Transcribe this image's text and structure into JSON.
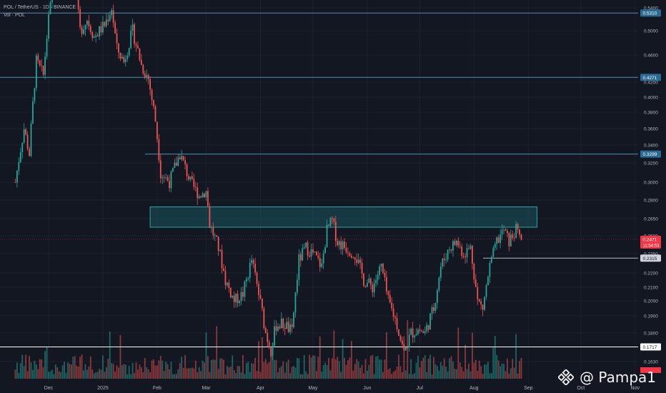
{
  "legend": {
    "symbol_line": "POL / TetherUS · 1D · BINANCE",
    "volume_line": "Vol · POL"
  },
  "watermark": {
    "text": "@ Pampa1",
    "icon": "binance-logo-icon"
  },
  "colors": {
    "background": "#131722",
    "up": "#26a69a",
    "down": "#ef5350",
    "level_line": "#4f8fb0",
    "zone_fill": "#1f7f86",
    "label_bg": "#2a6a93",
    "price_tag_bg": "#f23645",
    "white_line": "#ffffff"
  },
  "chart_data": {
    "type": "candlestick",
    "y_ticks": [
      "0.5400",
      "0.5000",
      "0.4600",
      "0.4200",
      "0.4000",
      "0.3800",
      "0.3600",
      "0.3400",
      "0.3200",
      "0.3000",
      "0.2800",
      "0.2650",
      "0.2500",
      "0.2350",
      "0.2200",
      "0.2100",
      "0.2000",
      "0.1900",
      "0.1800",
      "0.1630"
    ],
    "x_ticks": [
      "Dec",
      "2025",
      "Feb",
      "Mar",
      "Apr",
      "May",
      "Jun",
      "Jul",
      "Aug",
      "Sep",
      "Oct",
      "Nov"
    ],
    "levels": [
      {
        "label": "0.5310",
        "value": 0.531,
        "color": "#4f8fb0"
      },
      {
        "label": "0.4271",
        "value": 0.4271,
        "color": "#4f8fb0"
      },
      {
        "label": "0.3299",
        "value": 0.3299,
        "color": "#4f8fb0"
      },
      {
        "label": "0.2315",
        "value": 0.2315,
        "color": "#b2b5be"
      },
      {
        "label": "0.1717",
        "value": 0.1717,
        "color": "#ffffff"
      }
    ],
    "current_price": {
      "value": 0.2471,
      "label": "0.2471",
      "countdown": "11:54:53"
    },
    "zone": {
      "from": "2025-01-28",
      "to": "2025-09-06",
      "low": 0.2575,
      "high": 0.2745
    },
    "anchors": [
      [
        "2024-11-12",
        0.3
      ],
      [
        "2024-11-17",
        0.36
      ],
      [
        "2024-11-20",
        0.33
      ],
      [
        "2024-11-24",
        0.45
      ],
      [
        "2024-11-28",
        0.43
      ],
      [
        "2024-12-01",
        0.52
      ],
      [
        "2024-12-04",
        0.58
      ],
      [
        "2024-12-08",
        0.56
      ],
      [
        "2024-12-12",
        0.62
      ],
      [
        "2024-12-16",
        0.58
      ],
      [
        "2024-12-19",
        0.5
      ],
      [
        "2024-12-23",
        0.52
      ],
      [
        "2024-12-27",
        0.49
      ],
      [
        "2025-01-02",
        0.51
      ],
      [
        "2025-01-06",
        0.54
      ],
      [
        "2025-01-09",
        0.47
      ],
      [
        "2025-01-13",
        0.45
      ],
      [
        "2025-01-18",
        0.5
      ],
      [
        "2025-01-23",
        0.445
      ],
      [
        "2025-01-27",
        0.425
      ],
      [
        "2025-01-31",
        0.37
      ],
      [
        "2025-02-03",
        0.31
      ],
      [
        "2025-02-08",
        0.3
      ],
      [
        "2025-02-14",
        0.33
      ],
      [
        "2025-02-20",
        0.3
      ],
      [
        "2025-02-25",
        0.285
      ],
      [
        "2025-03-01",
        0.29
      ],
      [
        "2025-03-03",
        0.26
      ],
      [
        "2025-03-08",
        0.24
      ],
      [
        "2025-03-12",
        0.215
      ],
      [
        "2025-03-17",
        0.2
      ],
      [
        "2025-03-22",
        0.205
      ],
      [
        "2025-03-27",
        0.23
      ],
      [
        "2025-03-31",
        0.205
      ],
      [
        "2025-04-04",
        0.18
      ],
      [
        "2025-04-07",
        0.17
      ],
      [
        "2025-04-10",
        0.185
      ],
      [
        "2025-04-15",
        0.185
      ],
      [
        "2025-04-19",
        0.18
      ],
      [
        "2025-04-23",
        0.23
      ],
      [
        "2025-04-27",
        0.24
      ],
      [
        "2025-05-01",
        0.235
      ],
      [
        "2025-05-06",
        0.225
      ],
      [
        "2025-05-09",
        0.255
      ],
      [
        "2025-05-12",
        0.263
      ],
      [
        "2025-05-15",
        0.245
      ],
      [
        "2025-05-20",
        0.24
      ],
      [
        "2025-05-25",
        0.235
      ],
      [
        "2025-05-30",
        0.215
      ],
      [
        "2025-06-04",
        0.21
      ],
      [
        "2025-06-09",
        0.225
      ],
      [
        "2025-06-13",
        0.2
      ],
      [
        "2025-06-18",
        0.185
      ],
      [
        "2025-06-22",
        0.168
      ],
      [
        "2025-06-26",
        0.18
      ],
      [
        "2025-06-30",
        0.182
      ],
      [
        "2025-07-04",
        0.18
      ],
      [
        "2025-07-09",
        0.195
      ],
      [
        "2025-07-13",
        0.225
      ],
      [
        "2025-07-18",
        0.24
      ],
      [
        "2025-07-22",
        0.245
      ],
      [
        "2025-07-26",
        0.235
      ],
      [
        "2025-07-30",
        0.24
      ],
      [
        "2025-08-03",
        0.2
      ],
      [
        "2025-08-06",
        0.195
      ],
      [
        "2025-08-10",
        0.225
      ],
      [
        "2025-08-14",
        0.245
      ],
      [
        "2025-08-18",
        0.255
      ],
      [
        "2025-08-21",
        0.245
      ],
      [
        "2025-08-25",
        0.255
      ],
      [
        "2025-08-28",
        0.2471
      ]
    ]
  }
}
